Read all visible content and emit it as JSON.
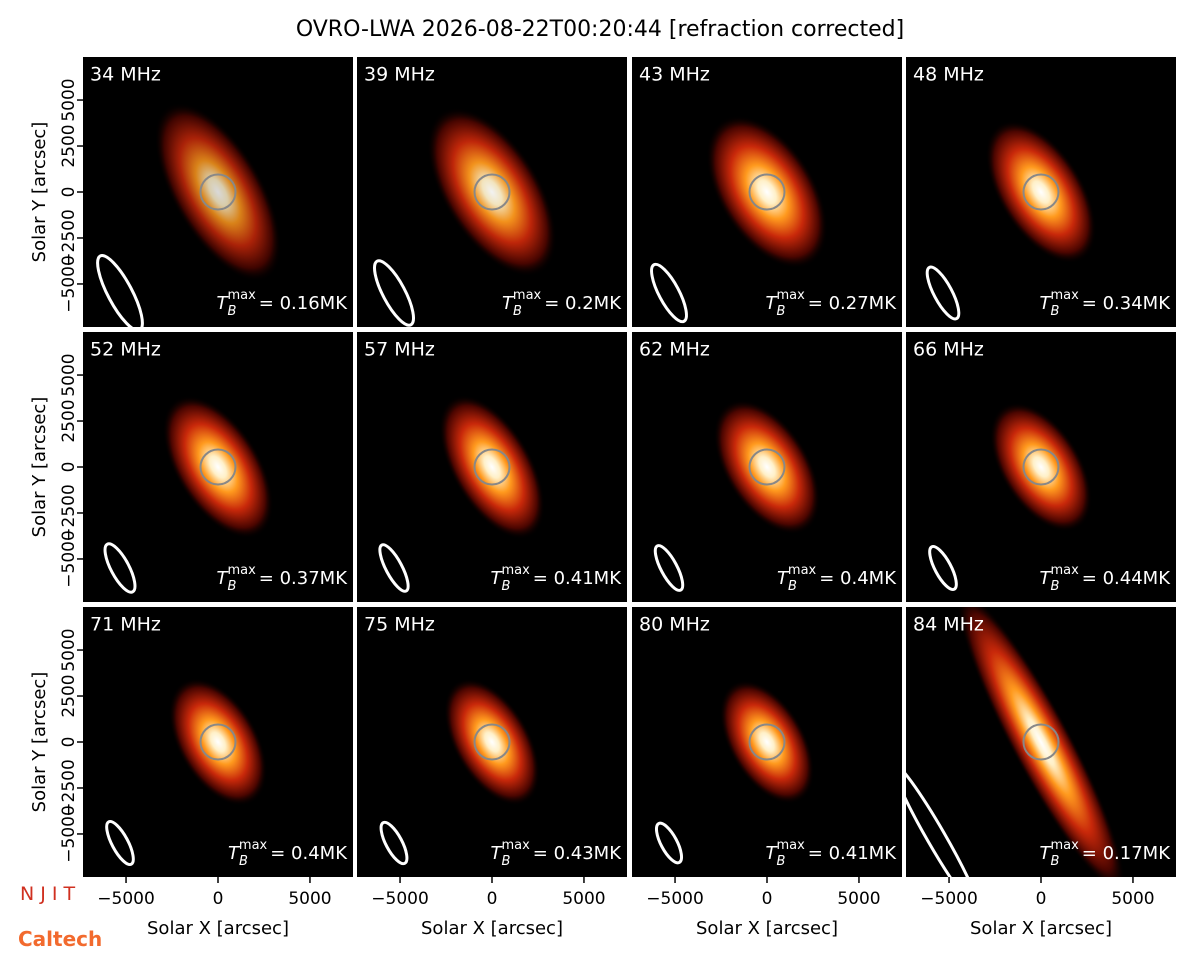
{
  "title": "OVRO-LWA 2026-08-22T00:20:44 [refraction corrected]",
  "xlabel": "Solar X [arcsec]",
  "ylabel": "Solar Y [arcsec]",
  "xlim": [
    -7340,
    7340
  ],
  "ylim": [
    -7340,
    7340
  ],
  "xticks": [
    {
      "value": -5000,
      "label": "−5000"
    },
    0,
    5000
  ],
  "yticks": [
    {
      "value": -5000,
      "label": "−5000"
    },
    {
      "value": -2500,
      "label": "−2500"
    },
    0,
    2500,
    5000
  ],
  "tb_symbol": "T",
  "tb_sub": "B",
  "tb_sup": "max",
  "panels": [
    {
      "freq": "34 MHz",
      "tb": "= 0.16MK"
    },
    {
      "freq": "39 MHz",
      "tb": "= 0.2MK"
    },
    {
      "freq": "43 MHz",
      "tb": "= 0.27MK"
    },
    {
      "freq": "48 MHz",
      "tb": "= 0.34MK"
    },
    {
      "freq": "52 MHz",
      "tb": "= 0.37MK"
    },
    {
      "freq": "57 MHz",
      "tb": "= 0.41MK"
    },
    {
      "freq": "62 MHz",
      "tb": "= 0.4MK"
    },
    {
      "freq": "66 MHz",
      "tb": "= 0.44MK"
    },
    {
      "freq": "71 MHz",
      "tb": "= 0.4MK"
    },
    {
      "freq": "75 MHz",
      "tb": "= 0.43MK"
    },
    {
      "freq": "80 MHz",
      "tb": "= 0.41MK"
    },
    {
      "freq": "84 MHz",
      "tb": "= 0.17MK"
    }
  ],
  "logos": [
    "N J I T",
    "Caltech"
  ]
}
